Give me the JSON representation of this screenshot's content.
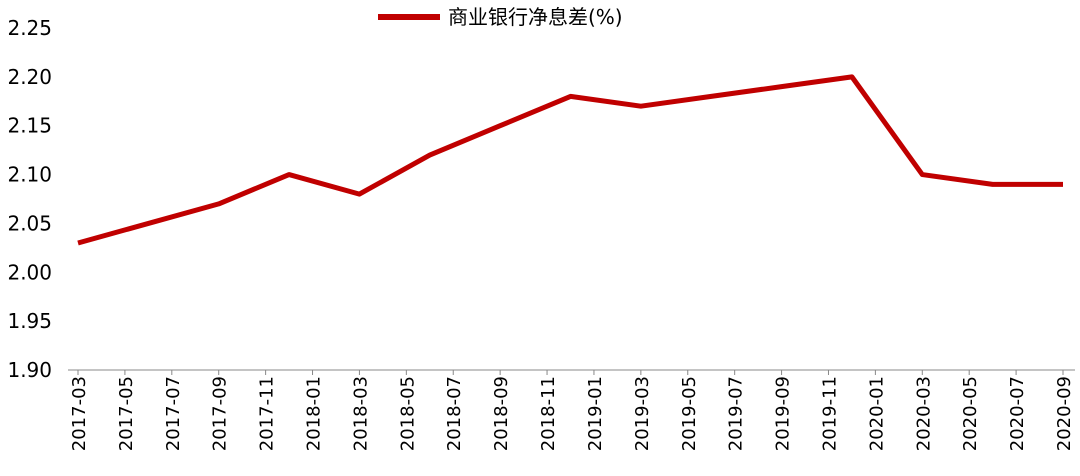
{
  "chart_data": {
    "type": "line",
    "legend": "top",
    "x": [
      "2017-03",
      "2017-06",
      "2017-09",
      "2017-12",
      "2018-03",
      "2018-06",
      "2018-09",
      "2018-12",
      "2019-03",
      "2019-06",
      "2019-09",
      "2019-12",
      "2020-03",
      "2020-06",
      "2020-09"
    ],
    "xlim": [
      "2017-03",
      "2020-09"
    ],
    "xticks": [
      "2017-03",
      "2017-05",
      "2017-07",
      "2017-09",
      "2017-11",
      "2018-01",
      "2018-03",
      "2018-05",
      "2018-07",
      "2018-09",
      "2018-11",
      "2019-01",
      "2019-03",
      "2019-05",
      "2019-07",
      "2019-09",
      "2019-11",
      "2020-01",
      "2020-03",
      "2020-05",
      "2020-07",
      "2020-09"
    ],
    "series": [
      {
        "name": "商业银行净息差(%)",
        "color": "#c00000",
        "values": [
          2.03,
          2.05,
          2.07,
          2.1,
          2.08,
          2.12,
          2.15,
          2.18,
          2.17,
          2.18,
          2.19,
          2.2,
          2.1,
          2.09,
          2.09
        ]
      }
    ],
    "ylim": [
      1.9,
      2.25
    ],
    "yticks": [
      {
        "value": 1.9,
        "label": "1.90"
      },
      {
        "value": 1.95,
        "label": "1.95"
      },
      {
        "value": 2,
        "label": "2.00"
      },
      {
        "value": 2.05,
        "label": "2.05"
      },
      {
        "value": 2.1,
        "label": "2.10"
      },
      {
        "value": 2.15,
        "label": "2.15"
      },
      {
        "value": 2.2,
        "label": "2.20"
      },
      {
        "value": 2.25,
        "label": "2.25"
      }
    ],
    "grid": false
  }
}
